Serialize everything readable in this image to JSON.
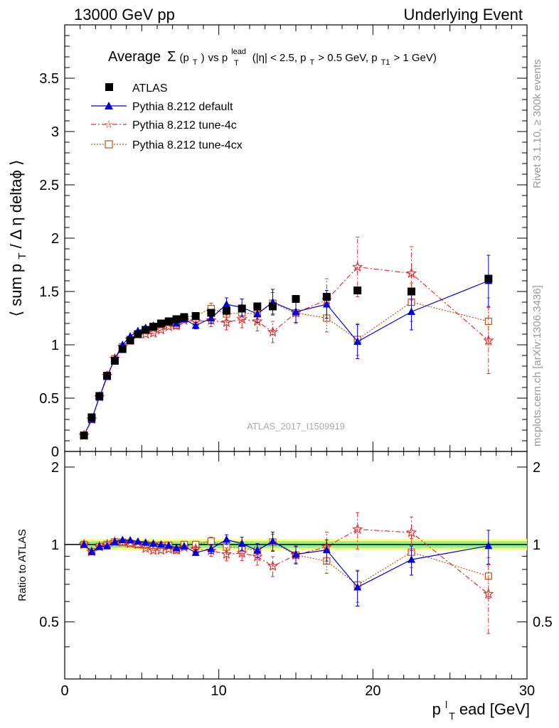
{
  "header": {
    "left": "13000 GeV pp",
    "right": "Underlying Event"
  },
  "side": {
    "rivet": "Rivet 3.1.10, ≥ 300k events",
    "mcplots": "mcplots.cern.ch [arXiv:1306.3436]"
  },
  "watermark": "ATLAS_2017_I1509919",
  "title": {
    "average": "Average",
    "sigma": "Σ",
    "pt_open": "(p",
    "pt_sub": "T",
    "pt_close": ")",
    "vs": " vs p",
    "lead_sup": "lead",
    "lead_sub": "T",
    "cuts_a": " (|η| < 2.5, p",
    "cuts_a_sub": "T",
    "cuts_b": " > 0.5 GeV, p",
    "cuts_b_sub": "T1",
    "cuts_c": " > 1 GeV)"
  },
  "ylabel": {
    "a": "⟨ sum p",
    "sub": "T",
    "b": " / Δ η deltaϕ ⟩"
  },
  "ratio_ylabel": "Ratio to ATLAS",
  "xlabel": {
    "p": "p",
    "sup": "l",
    "sub": "T",
    "rest": "ead [GeV]"
  },
  "legend": [
    {
      "label": "ATLAS",
      "color": "#000000",
      "marker": "square"
    },
    {
      "label": "Pythia 8.212 default",
      "color": "#0000dd",
      "marker": "triangle"
    },
    {
      "label": "Pythia 8.212 tune-4c",
      "color": "#e03030",
      "marker": "star"
    },
    {
      "label": "Pythia 8.212 tune-4cx",
      "color": "#c05010",
      "marker": "open-square"
    }
  ],
  "chart_data": {
    "type": "scatter",
    "xlim": [
      0,
      30
    ],
    "ylim": [
      0,
      4
    ],
    "ratio_ylim": [
      0.3,
      2.3
    ],
    "x_ticks": [
      "0",
      "10",
      "20",
      "30"
    ],
    "y_ticks": [
      "0",
      "0.5",
      "1",
      "1.5",
      "2",
      "2.5",
      "3",
      "3.5"
    ],
    "ratio_ticks": [
      "0.5",
      "1",
      "2"
    ],
    "x": [
      1.25,
      1.75,
      2.25,
      2.75,
      3.25,
      3.75,
      4.25,
      4.75,
      5.25,
      5.75,
      6.25,
      6.75,
      7.25,
      7.75,
      8.5,
      9.5,
      10.5,
      11.5,
      12.5,
      13.5,
      15.0,
      17.0,
      19.0,
      22.5,
      27.5
    ],
    "series": [
      {
        "name": "ATLAS",
        "values": [
          0.15,
          0.32,
          0.52,
          0.71,
          0.85,
          0.96,
          1.04,
          1.1,
          1.14,
          1.17,
          1.2,
          1.22,
          1.24,
          1.26,
          1.27,
          1.3,
          1.32,
          1.34,
          1.36,
          1.36,
          1.43,
          1.45,
          1.51,
          1.5,
          1.62
        ]
      },
      {
        "name": "Pythia 8.212 default",
        "values": [
          0.15,
          0.3,
          0.51,
          0.7,
          0.87,
          1.0,
          1.08,
          1.13,
          1.16,
          1.18,
          1.2,
          1.21,
          1.2,
          1.24,
          1.18,
          1.25,
          1.38,
          1.35,
          1.29,
          1.4,
          1.31,
          1.38,
          1.03,
          1.31,
          1.6
        ],
        "errors": [
          0,
          0,
          0,
          0,
          0,
          0,
          0,
          0,
          0,
          0,
          0,
          0,
          0,
          0,
          0.03,
          0.05,
          0.06,
          0.08,
          0.08,
          0.12,
          0.1,
          0.13,
          0.16,
          0.17,
          0.24
        ]
      },
      {
        "name": "Pythia 8.212 tune-4c",
        "values": [
          0.15,
          0.3,
          0.51,
          0.71,
          0.87,
          0.98,
          1.05,
          1.1,
          1.1,
          1.11,
          1.14,
          1.17,
          1.18,
          1.23,
          1.22,
          1.23,
          1.21,
          1.24,
          1.22,
          1.12,
          1.3,
          1.42,
          1.73,
          1.67,
          1.04
        ],
        "errors": [
          0,
          0,
          0,
          0,
          0,
          0,
          0,
          0,
          0,
          0,
          0,
          0,
          0,
          0,
          0.03,
          0.06,
          0.07,
          0.08,
          0.09,
          0.1,
          0.1,
          0.2,
          0.28,
          0.25,
          0.31
        ]
      },
      {
        "name": "Pythia 8.212 tune-4cx",
        "values": [
          0.15,
          0.3,
          0.51,
          0.71,
          0.87,
          0.98,
          1.05,
          1.1,
          1.14,
          1.16,
          1.19,
          1.21,
          1.18,
          1.26,
          1.27,
          1.34,
          1.29,
          1.3,
          1.29,
          1.39,
          1.3,
          1.25,
          1.05,
          1.4,
          1.22
        ],
        "errors": [
          0,
          0,
          0,
          0,
          0,
          0,
          0,
          0,
          0,
          0,
          0,
          0,
          0,
          0,
          0.03,
          0.05,
          0.06,
          0.07,
          0.08,
          0.1,
          0.1,
          0.13,
          0.15,
          0.18,
          0.22
        ]
      }
    ],
    "ratio_band": {
      "inner": 0.03,
      "outer": 0.05
    }
  }
}
